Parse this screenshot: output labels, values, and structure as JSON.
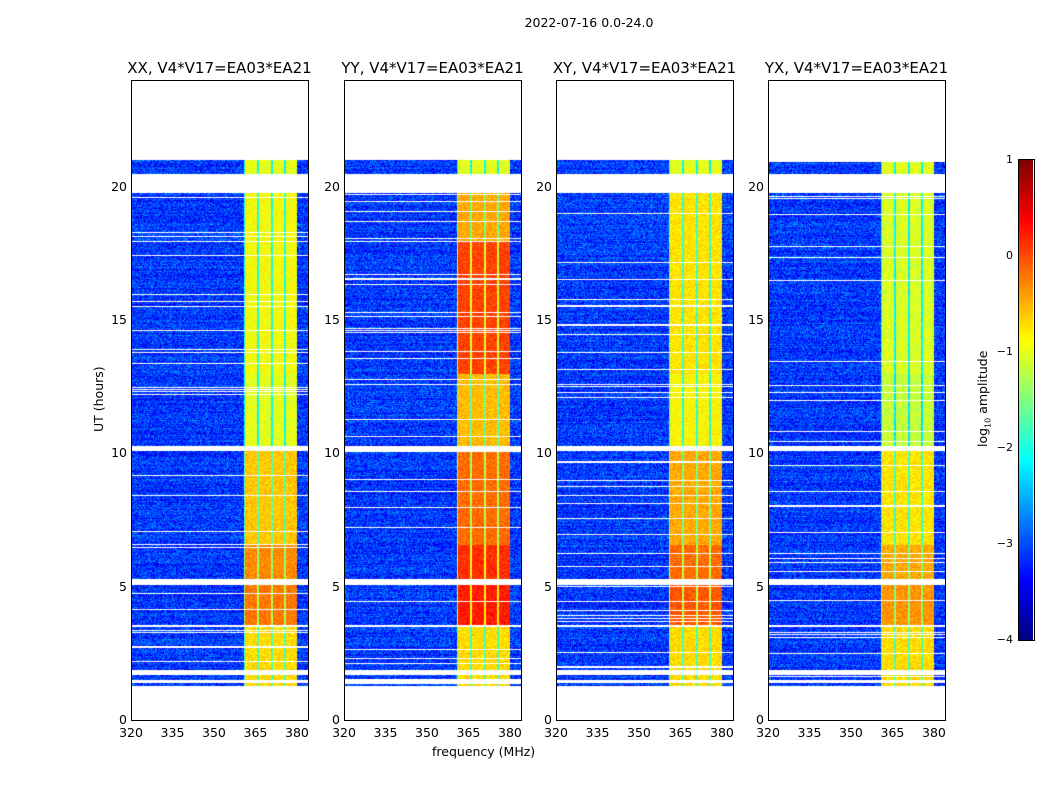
{
  "chart_data": {
    "type": "heatmap",
    "title": "2022-07-16 0.0-24.0",
    "xlabel": "frequency (MHz)",
    "ylabel": "UT (hours)",
    "xlim": [
      320,
      384
    ],
    "ylim": [
      0,
      24
    ],
    "xticks": [
      320,
      335,
      350,
      365,
      380
    ],
    "yticks": [
      0,
      5,
      10,
      15,
      20
    ],
    "colorbar": {
      "label": "log10 amplitude",
      "label_main": "log",
      "label_sub": "10",
      "label_rest": " amplitude",
      "clim": [
        -4,
        1
      ],
      "ticks": [
        1,
        0,
        -1,
        -2,
        -3,
        -4
      ],
      "tick_labels": [
        "1",
        "0",
        "−1",
        "−2",
        "−3",
        "−4"
      ],
      "colormap": "jet"
    },
    "data_hours": [
      1.3,
      21.0
    ],
    "rfi_band_mhz": [
      360.5,
      380
    ],
    "flagged_hours": [
      [
        19.8,
        20.5
      ],
      [
        10.1,
        10.3
      ],
      [
        5.1,
        5.3
      ],
      [
        3.5,
        3.6
      ],
      [
        1.7,
        1.9
      ],
      [
        1.4,
        1.5
      ]
    ],
    "rfi_level_by_time": [
      [
        20.5,
        21.0,
        -1.0
      ],
      [
        13.0,
        19.8,
        -0.9
      ],
      [
        10.3,
        13.0,
        -1.0
      ],
      [
        6.6,
        10.1,
        -0.6
      ],
      [
        5.3,
        6.6,
        -0.3
      ],
      [
        3.6,
        5.1,
        -0.2
      ],
      [
        1.3,
        3.5,
        -0.7
      ]
    ],
    "background_level": -3.1,
    "panels": [
      {
        "title": "XX, V4*V17=EA03*EA21",
        "rfi_offset": 0.0
      },
      {
        "title": "YY, V4*V17=EA03*EA21",
        "rfi_offset": 0.45
      },
      {
        "title": "XY, V4*V17=EA03*EA21",
        "rfi_offset": 0.15
      },
      {
        "title": "YX, V4*V17=EA03*EA21",
        "rfi_offset": -0.15
      }
    ]
  }
}
